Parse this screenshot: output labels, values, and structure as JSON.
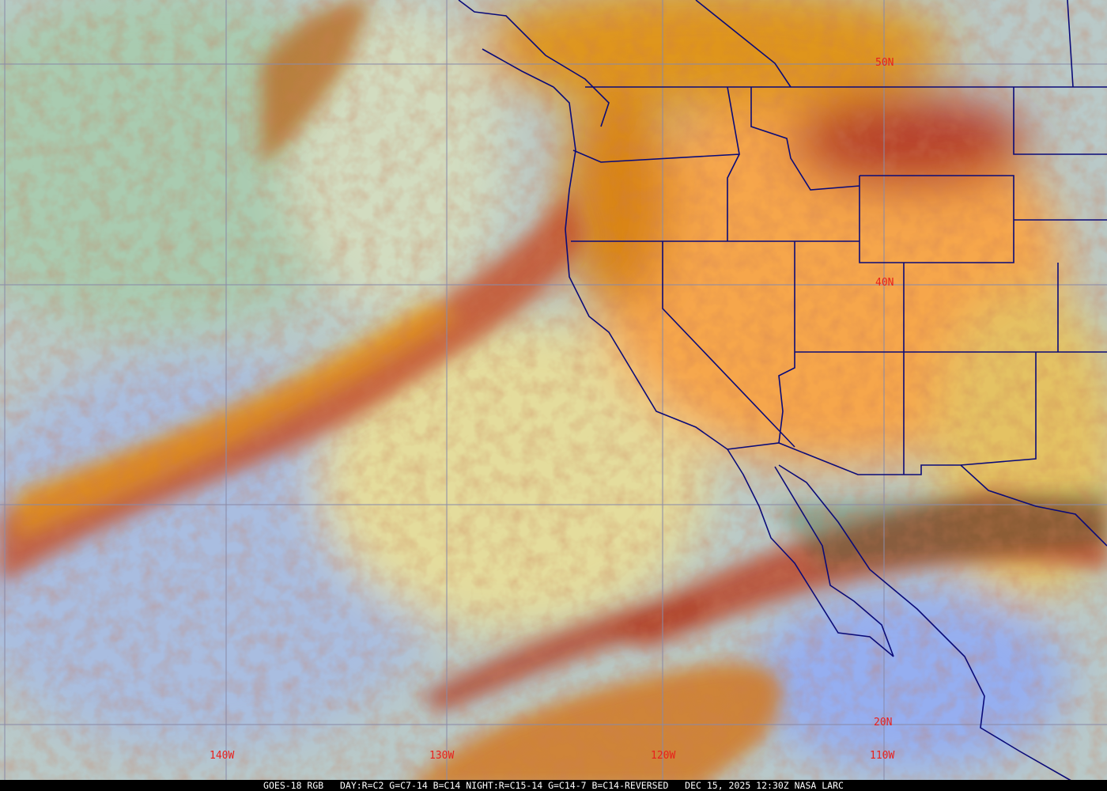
{
  "image": {
    "satellite": "GOES-18",
    "product": "RGB",
    "caption": "GOES-18 RGB   DAY:R=C2 G=C7-14 B=C14 NIGHT:R=C15-14 G=C14-7 B=C14-REVERSED   DEC 15, 2025 12:30Z NASA LARC"
  },
  "grid": {
    "latitude_labels": [
      "50N",
      "40N",
      "20N"
    ],
    "longitude_labels": [
      "140W",
      "130W",
      "120W",
      "110W"
    ]
  },
  "colors": {
    "gridline": "#8a8aa8",
    "boundaries": "#0a0a78",
    "label": "#e8201c",
    "ocean_clear": "#9fb4e8",
    "land_warm": "#f5a54a",
    "cloud_orange": "#e08a1c",
    "cloud_red": "#a83a28",
    "cloud_pale": "#c8d8c0"
  }
}
